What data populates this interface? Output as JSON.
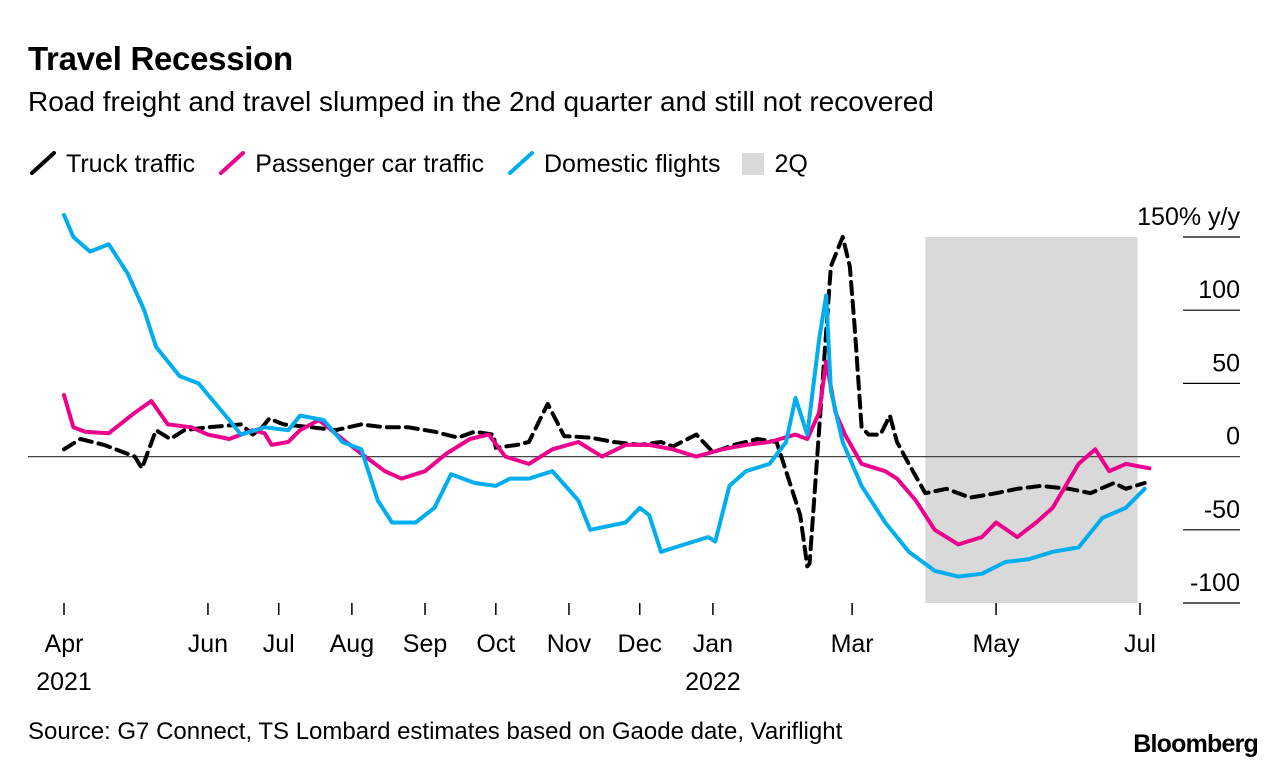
{
  "chart_data": {
    "type": "line",
    "title": "Travel Recession",
    "subtitle": "Road freight and travel slumped in the 2nd quarter and still not recovered",
    "ylabel_unit": "% y/y",
    "ylim": [
      -100,
      150
    ],
    "yticks": [
      {
        "value": 150,
        "label": "150% y/y"
      },
      {
        "value": 100,
        "label": "100"
      },
      {
        "value": 50,
        "label": "50"
      },
      {
        "value": 0,
        "label": "0"
      },
      {
        "value": -50,
        "label": "-50"
      },
      {
        "value": -100,
        "label": "-100"
      }
    ],
    "xlim": [
      "2021-04-01",
      "2022-07-01"
    ],
    "xticks": [
      {
        "date": "2021-04-01",
        "label": "Apr",
        "sublabel": "2021"
      },
      {
        "date": "2021-06-01",
        "label": "Jun",
        "sublabel": ""
      },
      {
        "date": "2021-07-01",
        "label": "Jul",
        "sublabel": ""
      },
      {
        "date": "2021-08-01",
        "label": "Aug",
        "sublabel": ""
      },
      {
        "date": "2021-09-01",
        "label": "Sep",
        "sublabel": ""
      },
      {
        "date": "2021-10-01",
        "label": "Oct",
        "sublabel": ""
      },
      {
        "date": "2021-11-01",
        "label": "Nov",
        "sublabel": ""
      },
      {
        "date": "2021-12-01",
        "label": "Dec",
        "sublabel": ""
      },
      {
        "date": "2022-01-01",
        "label": "Jan",
        "sublabel": "2022"
      },
      {
        "date": "2022-03-01",
        "label": "Mar",
        "sublabel": ""
      },
      {
        "date": "2022-05-01",
        "label": "May",
        "sublabel": ""
      },
      {
        "date": "2022-07-01",
        "label": "Jul",
        "sublabel": ""
      }
    ],
    "shaded_region": {
      "name": "2Q",
      "start": "2022-04-01",
      "end": "2022-06-30",
      "color": "#d9d9d9"
    },
    "legend_position": "top-left",
    "series": [
      {
        "name": "Truck traffic",
        "color": "#000000",
        "style": "dashed",
        "points": [
          [
            "2021-04-01",
            5
          ],
          [
            "2021-04-08",
            12
          ],
          [
            "2021-04-18",
            8
          ],
          [
            "2021-05-01",
            0
          ],
          [
            "2021-05-04",
            -8
          ],
          [
            "2021-05-10",
            18
          ],
          [
            "2021-05-16",
            12
          ],
          [
            "2021-05-22",
            18
          ],
          [
            "2021-06-01",
            20
          ],
          [
            "2021-06-15",
            22
          ],
          [
            "2021-06-20",
            15
          ],
          [
            "2021-06-24",
            20
          ],
          [
            "2021-06-27",
            26
          ],
          [
            "2021-07-03",
            22
          ],
          [
            "2021-07-15",
            20
          ],
          [
            "2021-07-25",
            18
          ],
          [
            "2021-08-05",
            22
          ],
          [
            "2021-08-15",
            20
          ],
          [
            "2021-08-25",
            20
          ],
          [
            "2021-09-05",
            17
          ],
          [
            "2021-09-15",
            13
          ],
          [
            "2021-09-22",
            17
          ],
          [
            "2021-09-30",
            15
          ],
          [
            "2021-10-01",
            6
          ],
          [
            "2021-10-10",
            8
          ],
          [
            "2021-10-15",
            10
          ],
          [
            "2021-10-23",
            36
          ],
          [
            "2021-10-30",
            14
          ],
          [
            "2021-11-10",
            13
          ],
          [
            "2021-11-20",
            10
          ],
          [
            "2021-12-01",
            8
          ],
          [
            "2021-12-10",
            10
          ],
          [
            "2021-12-15",
            7
          ],
          [
            "2021-12-25",
            15
          ],
          [
            "2022-01-01",
            3
          ],
          [
            "2022-01-10",
            8
          ],
          [
            "2022-01-20",
            12
          ],
          [
            "2022-01-28",
            10
          ],
          [
            "2022-02-03",
            -20
          ],
          [
            "2022-02-07",
            -40
          ],
          [
            "2022-02-10",
            -75
          ],
          [
            "2022-02-11",
            -73
          ],
          [
            "2022-02-16",
            40
          ],
          [
            "2022-02-20",
            130
          ],
          [
            "2022-02-25",
            150
          ],
          [
            "2022-02-28",
            130
          ],
          [
            "2022-03-02",
            90
          ],
          [
            "2022-03-05",
            20
          ],
          [
            "2022-03-08",
            15
          ],
          [
            "2022-03-13",
            15
          ],
          [
            "2022-03-17",
            28
          ],
          [
            "2022-03-20",
            10
          ],
          [
            "2022-03-25",
            -5
          ],
          [
            "2022-04-01",
            -25
          ],
          [
            "2022-04-10",
            -22
          ],
          [
            "2022-04-20",
            -28
          ],
          [
            "2022-05-01",
            -25
          ],
          [
            "2022-05-10",
            -22
          ],
          [
            "2022-05-20",
            -20
          ],
          [
            "2022-06-01",
            -22
          ],
          [
            "2022-06-10",
            -25
          ],
          [
            "2022-06-20",
            -18
          ],
          [
            "2022-06-25",
            -22
          ],
          [
            "2022-07-03",
            -18
          ]
        ]
      },
      {
        "name": "Passenger car traffic",
        "color": "#ec008c",
        "style": "solid",
        "points": [
          [
            "2021-04-01",
            42
          ],
          [
            "2021-04-05",
            20
          ],
          [
            "2021-04-10",
            17
          ],
          [
            "2021-04-20",
            16
          ],
          [
            "2021-05-01",
            30
          ],
          [
            "2021-05-08",
            38
          ],
          [
            "2021-05-15",
            22
          ],
          [
            "2021-05-25",
            20
          ],
          [
            "2021-06-01",
            15
          ],
          [
            "2021-06-10",
            12
          ],
          [
            "2021-06-20",
            18
          ],
          [
            "2021-06-25",
            16
          ],
          [
            "2021-06-28",
            8
          ],
          [
            "2021-07-05",
            10
          ],
          [
            "2021-07-10",
            18
          ],
          [
            "2021-07-18",
            25
          ],
          [
            "2021-07-28",
            12
          ],
          [
            "2021-08-05",
            2
          ],
          [
            "2021-08-15",
            -10
          ],
          [
            "2021-08-22",
            -15
          ],
          [
            "2021-09-01",
            -10
          ],
          [
            "2021-09-10",
            2
          ],
          [
            "2021-09-20",
            12
          ],
          [
            "2021-09-28",
            15
          ],
          [
            "2021-10-05",
            0
          ],
          [
            "2021-10-15",
            -5
          ],
          [
            "2021-10-25",
            5
          ],
          [
            "2021-11-05",
            10
          ],
          [
            "2021-11-15",
            0
          ],
          [
            "2021-11-25",
            8
          ],
          [
            "2021-12-05",
            8
          ],
          [
            "2021-12-15",
            5
          ],
          [
            "2021-12-25",
            0
          ],
          [
            "2022-01-05",
            5
          ],
          [
            "2022-01-15",
            8
          ],
          [
            "2022-01-25",
            10
          ],
          [
            "2022-02-05",
            15
          ],
          [
            "2022-02-10",
            12
          ],
          [
            "2022-02-15",
            30
          ],
          [
            "2022-02-18",
            65
          ],
          [
            "2022-02-22",
            30
          ],
          [
            "2022-02-26",
            15
          ],
          [
            "2022-03-05",
            -5
          ],
          [
            "2022-03-15",
            -10
          ],
          [
            "2022-03-20",
            -15
          ],
          [
            "2022-03-28",
            -30
          ],
          [
            "2022-04-05",
            -50
          ],
          [
            "2022-04-15",
            -60
          ],
          [
            "2022-04-25",
            -55
          ],
          [
            "2022-05-01",
            -45
          ],
          [
            "2022-05-10",
            -55
          ],
          [
            "2022-05-18",
            -45
          ],
          [
            "2022-05-25",
            -35
          ],
          [
            "2022-06-05",
            -5
          ],
          [
            "2022-06-12",
            5
          ],
          [
            "2022-06-18",
            -10
          ],
          [
            "2022-06-25",
            -5
          ],
          [
            "2022-07-05",
            -8
          ]
        ]
      },
      {
        "name": "Domestic flights",
        "color": "#00aeef",
        "style": "solid",
        "points": [
          [
            "2021-04-01",
            165
          ],
          [
            "2021-04-05",
            150
          ],
          [
            "2021-04-12",
            140
          ],
          [
            "2021-04-20",
            145
          ],
          [
            "2021-04-28",
            125
          ],
          [
            "2021-05-05",
            100
          ],
          [
            "2021-05-10",
            75
          ],
          [
            "2021-05-20",
            55
          ],
          [
            "2021-05-28",
            50
          ],
          [
            "2021-06-10",
            25
          ],
          [
            "2021-06-15",
            15
          ],
          [
            "2021-06-25",
            20
          ],
          [
            "2021-07-05",
            18
          ],
          [
            "2021-07-10",
            28
          ],
          [
            "2021-07-20",
            25
          ],
          [
            "2021-07-28",
            10
          ],
          [
            "2021-08-05",
            5
          ],
          [
            "2021-08-12",
            -30
          ],
          [
            "2021-08-18",
            -45
          ],
          [
            "2021-08-28",
            -45
          ],
          [
            "2021-09-05",
            -35
          ],
          [
            "2021-09-12",
            -12
          ],
          [
            "2021-09-22",
            -18
          ],
          [
            "2021-10-01",
            -20
          ],
          [
            "2021-10-07",
            -15
          ],
          [
            "2021-10-15",
            -15
          ],
          [
            "2021-10-25",
            -10
          ],
          [
            "2021-11-05",
            -30
          ],
          [
            "2021-11-10",
            -50
          ],
          [
            "2021-11-25",
            -45
          ],
          [
            "2021-12-01",
            -35
          ],
          [
            "2021-12-05",
            -40
          ],
          [
            "2021-12-10",
            -65
          ],
          [
            "2021-12-20",
            -60
          ],
          [
            "2021-12-30",
            -55
          ],
          [
            "2022-01-02",
            -58
          ],
          [
            "2022-01-08",
            -20
          ],
          [
            "2022-01-15",
            -10
          ],
          [
            "2022-01-25",
            -5
          ],
          [
            "2022-02-01",
            10
          ],
          [
            "2022-02-05",
            40
          ],
          [
            "2022-02-10",
            15
          ],
          [
            "2022-02-15",
            80
          ],
          [
            "2022-02-18",
            110
          ],
          [
            "2022-02-20",
            45
          ],
          [
            "2022-02-25",
            10
          ],
          [
            "2022-03-05",
            -20
          ],
          [
            "2022-03-15",
            -45
          ],
          [
            "2022-03-25",
            -65
          ],
          [
            "2022-04-05",
            -78
          ],
          [
            "2022-04-15",
            -82
          ],
          [
            "2022-04-25",
            -80
          ],
          [
            "2022-05-05",
            -72
          ],
          [
            "2022-05-15",
            -70
          ],
          [
            "2022-05-25",
            -65
          ],
          [
            "2022-06-05",
            -62
          ],
          [
            "2022-06-15",
            -42
          ],
          [
            "2022-06-25",
            -35
          ],
          [
            "2022-07-03",
            -22
          ]
        ]
      }
    ]
  },
  "source": "Source: G7 Connect, TS Lombard estimates based on Gaode date, Variflight",
  "brand": "Bloomberg"
}
